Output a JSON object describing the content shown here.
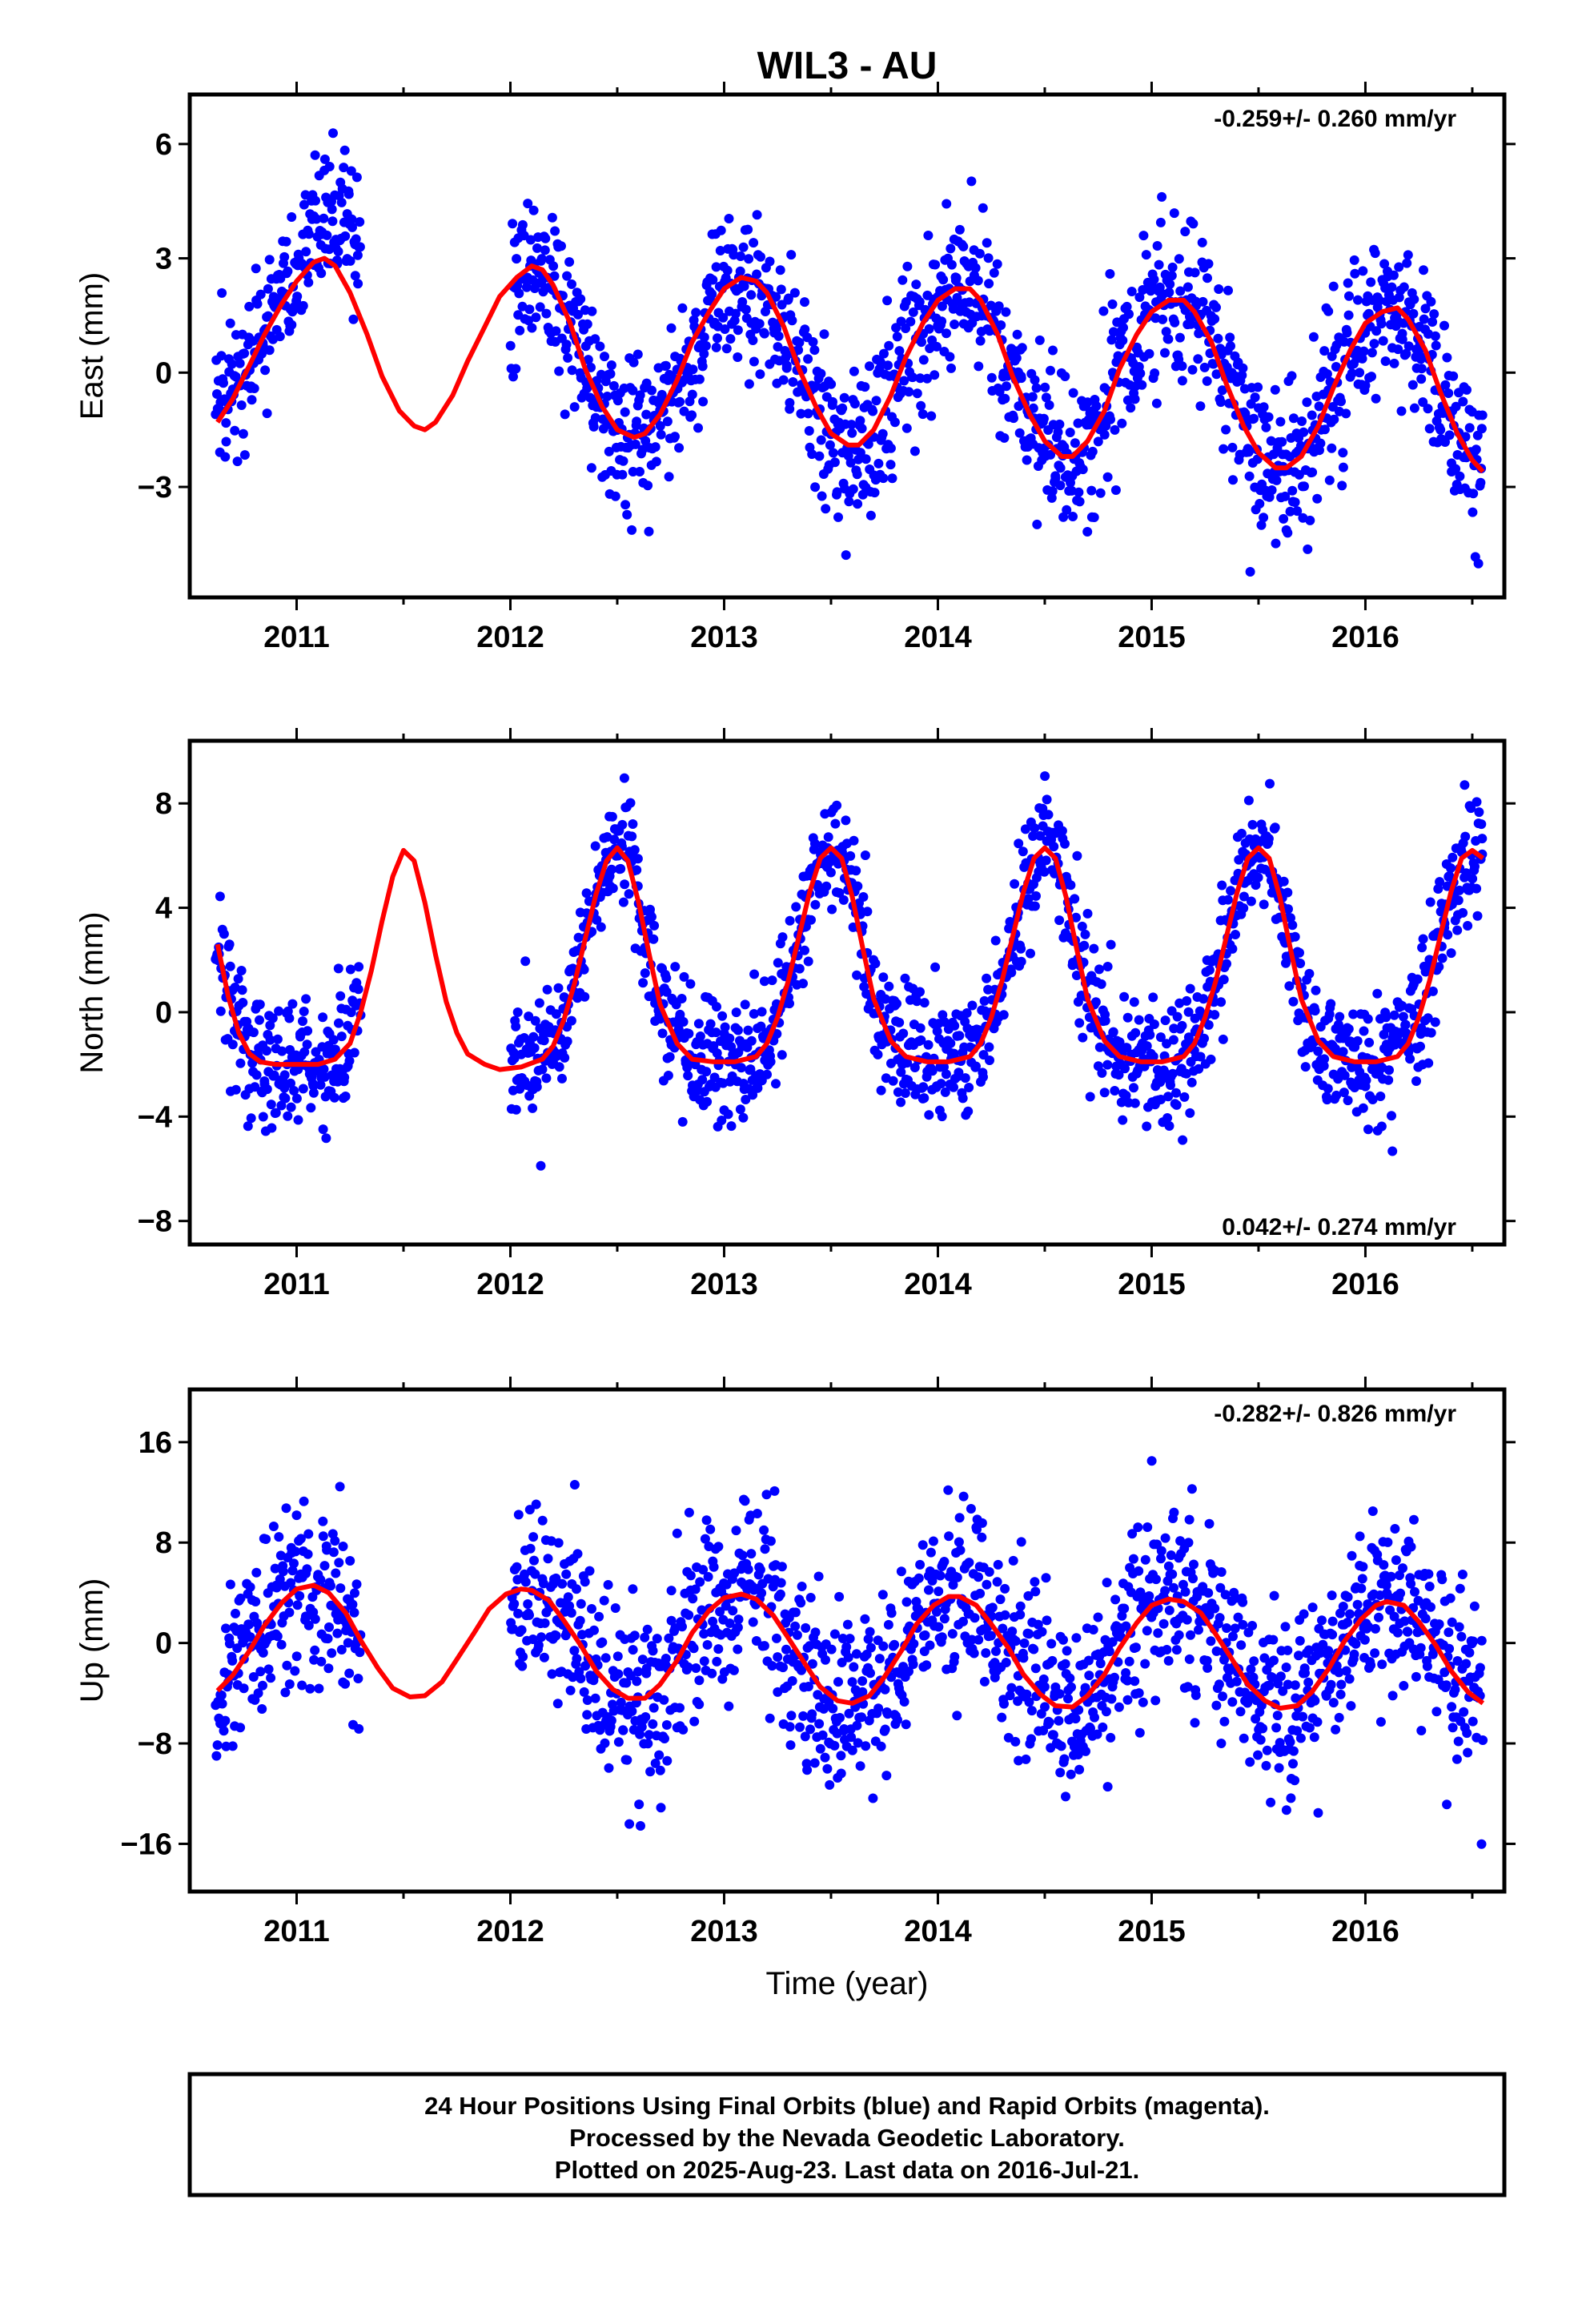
{
  "title": "WIL3 - AU",
  "xlabel": "Time (year)",
  "caption": [
    "24 Hour Positions Using Final Orbits (blue) and Rapid Orbits (magenta).",
    "Processed by the Nevada Geodetic Laboratory.",
    "Plotted on 2025-Aug-23. Last data on 2016-Jul-21."
  ],
  "colors": {
    "points": "#0000ff",
    "model": "#ff0000",
    "axes": "#000000"
  },
  "chart_data": [
    {
      "type": "scatter",
      "ylabel": "East (mm)",
      "rate_text": "-0.259+/- 0.260 mm/yr",
      "rate_position": "top-right",
      "xlim": [
        2010.5,
        2016.65
      ],
      "ylim": [
        -5.9,
        7.3
      ],
      "yticks": [
        -3,
        0,
        3,
        6
      ],
      "ytick_labels": [
        "−3",
        "0",
        "3",
        "6"
      ],
      "xticks": [
        2011,
        2012,
        2013,
        2014,
        2015,
        2016
      ],
      "xtick_labels": [
        "2011",
        "2012",
        "2013",
        "2014",
        "2015",
        "2016"
      ],
      "model": {
        "x": [
          2010.63,
          2010.7,
          2010.78,
          2010.85,
          2010.93,
          2011.0,
          2011.08,
          2011.13,
          2011.18,
          2011.25,
          2011.33,
          2011.4,
          2011.48,
          2011.55,
          2011.6,
          2011.65,
          2011.73,
          2011.8,
          2011.88,
          2011.95,
          2012.03,
          2012.1,
          2012.15,
          2012.2,
          2012.28,
          2012.35,
          2012.43,
          2012.5,
          2012.58,
          2012.63,
          2012.7,
          2012.78,
          2012.85,
          2012.93,
          2013.0,
          2013.08,
          2013.15,
          2013.2,
          2013.28,
          2013.35,
          2013.43,
          2013.5,
          2013.58,
          2013.63,
          2013.7,
          2013.78,
          2013.85,
          2013.93,
          2014.0,
          2014.08,
          2014.15,
          2014.2,
          2014.28,
          2014.35,
          2014.43,
          2014.5,
          2014.58,
          2014.63,
          2014.7,
          2014.78,
          2014.85,
          2014.93,
          2015.0,
          2015.08,
          2015.15,
          2015.2,
          2015.28,
          2015.35,
          2015.43,
          2015.5,
          2015.58,
          2015.63,
          2015.7,
          2015.78,
          2015.85,
          2015.93,
          2016.0,
          2016.08,
          2016.15,
          2016.2,
          2016.28,
          2016.35,
          2016.43,
          2016.5,
          2016.55
        ],
        "y": [
          -1.3,
          -0.7,
          0.2,
          1.0,
          1.8,
          2.4,
          2.9,
          3.0,
          2.8,
          2.1,
          1.0,
          -0.1,
          -1.0,
          -1.4,
          -1.5,
          -1.3,
          -0.6,
          0.3,
          1.2,
          2.0,
          2.5,
          2.8,
          2.7,
          2.3,
          1.3,
          0.1,
          -0.9,
          -1.5,
          -1.7,
          -1.6,
          -1.1,
          -0.2,
          0.8,
          1.6,
          2.2,
          2.5,
          2.4,
          2.1,
          1.2,
          0.1,
          -0.9,
          -1.6,
          -1.9,
          -1.9,
          -1.5,
          -0.6,
          0.4,
          1.3,
          1.9,
          2.2,
          2.2,
          1.9,
          1.0,
          -0.1,
          -1.1,
          -1.8,
          -2.2,
          -2.2,
          -1.8,
          -1.0,
          0.1,
          1.0,
          1.6,
          1.9,
          1.9,
          1.6,
          0.8,
          -0.3,
          -1.4,
          -2.1,
          -2.5,
          -2.5,
          -2.2,
          -1.4,
          -0.4,
          0.6,
          1.3,
          1.6,
          1.7,
          1.4,
          0.6,
          -0.5,
          -1.6,
          -2.3,
          -2.6
        ]
      },
      "points": {
        "segments": [
          [
            2010.62,
            2011.3
          ],
          [
            2012.0,
            2016.55
          ]
        ],
        "model_offset": [
          {
            "x0": 2011.0,
            "x1": 2011.3,
            "dy": 1.8
          }
        ],
        "scatter_sd": 1.05,
        "density_per_year": 300
      }
    },
    {
      "type": "scatter",
      "ylabel": "North (mm)",
      "rate_text": "0.042+/- 0.274 mm/yr",
      "rate_position": "bottom-right",
      "xlim": [
        2010.5,
        2016.65
      ],
      "ylim": [
        -8.9,
        10.4
      ],
      "yticks": [
        -8,
        -4,
        0,
        4,
        8
      ],
      "ytick_labels": [
        "−8",
        "−4",
        "0",
        "4",
        "8"
      ],
      "xticks": [
        2011,
        2012,
        2013,
        2014,
        2015,
        2016
      ],
      "xtick_labels": [
        "2011",
        "2012",
        "2013",
        "2014",
        "2015",
        "2016"
      ],
      "model": {
        "x": [
          2010.63,
          2010.68,
          2010.73,
          2010.78,
          2010.83,
          2010.9,
          2011.0,
          2011.1,
          2011.18,
          2011.25,
          2011.3,
          2011.35,
          2011.4,
          2011.45,
          2011.5,
          2011.55,
          2011.6,
          2011.65,
          2011.7,
          2011.75,
          2011.8,
          2011.88,
          2011.95,
          2012.05,
          2012.15,
          2012.2,
          2012.25,
          2012.3,
          2012.35,
          2012.4,
          2012.45,
          2012.5,
          2012.55,
          2012.6,
          2012.65,
          2012.7,
          2012.78,
          2012.85,
          2012.95,
          2013.05,
          2013.15,
          2013.2,
          2013.25,
          2013.3,
          2013.35,
          2013.4,
          2013.45,
          2013.5,
          2013.55,
          2013.6,
          2013.65,
          2013.7,
          2013.78,
          2013.85,
          2013.95,
          2014.05,
          2014.15,
          2014.2,
          2014.25,
          2014.3,
          2014.35,
          2014.4,
          2014.45,
          2014.5,
          2014.55,
          2014.6,
          2014.65,
          2014.7,
          2014.78,
          2014.85,
          2014.95,
          2015.05,
          2015.15,
          2015.2,
          2015.25,
          2015.3,
          2015.35,
          2015.4,
          2015.45,
          2015.5,
          2015.55,
          2015.6,
          2015.65,
          2015.7,
          2015.78,
          2015.85,
          2015.95,
          2016.05,
          2016.15,
          2016.2,
          2016.25,
          2016.3,
          2016.35,
          2016.4,
          2016.45,
          2016.5,
          2016.55
        ],
        "y": [
          2.6,
          0.6,
          -0.8,
          -1.6,
          -1.9,
          -2.0,
          -2.0,
          -2.0,
          -1.8,
          -1.2,
          0.0,
          1.6,
          3.5,
          5.2,
          6.2,
          5.8,
          4.2,
          2.2,
          0.4,
          -0.8,
          -1.6,
          -2.0,
          -2.2,
          -2.1,
          -1.8,
          -1.3,
          -0.3,
          1.1,
          2.8,
          4.5,
          5.8,
          6.3,
          5.8,
          4.2,
          2.2,
          0.3,
          -1.2,
          -1.8,
          -1.9,
          -1.9,
          -1.7,
          -1.2,
          -0.2,
          1.2,
          2.9,
          4.6,
          5.9,
          6.3,
          5.9,
          4.4,
          2.4,
          0.5,
          -1.1,
          -1.7,
          -1.9,
          -1.9,
          -1.7,
          -1.2,
          -0.2,
          1.2,
          2.9,
          4.6,
          5.9,
          6.3,
          5.9,
          4.4,
          2.4,
          0.5,
          -1.1,
          -1.7,
          -1.9,
          -1.9,
          -1.7,
          -1.2,
          -0.2,
          1.2,
          2.9,
          4.6,
          5.9,
          6.3,
          5.9,
          4.4,
          2.4,
          0.5,
          -1.1,
          -1.7,
          -1.9,
          -1.9,
          -1.7,
          -1.2,
          -0.2,
          1.2,
          2.9,
          4.6,
          5.9,
          6.2,
          5.9
        ]
      },
      "points": {
        "segments": [
          [
            2010.62,
            2011.3
          ],
          [
            2012.0,
            2016.55
          ]
        ],
        "model_offset": [],
        "scatter_sd": 1.2,
        "density_per_year": 300
      }
    },
    {
      "type": "scatter",
      "ylabel": "Up (mm)",
      "rate_text": "-0.282+/- 0.826 mm/yr",
      "rate_position": "top-right",
      "xlim": [
        2010.5,
        2016.65
      ],
      "ylim": [
        -19.8,
        20.2
      ],
      "yticks": [
        -16,
        -8,
        0,
        8,
        16
      ],
      "ytick_labels": [
        "−16",
        "−8",
        "0",
        "8",
        "16"
      ],
      "xticks": [
        2011,
        2012,
        2013,
        2014,
        2015,
        2016
      ],
      "xtick_labels": [
        "2011",
        "2012",
        "2013",
        "2014",
        "2015",
        "2016"
      ],
      "model": {
        "x": [
          2010.63,
          2010.7,
          2010.78,
          2010.85,
          2010.93,
          2011.0,
          2011.08,
          2011.15,
          2011.23,
          2011.3,
          2011.38,
          2011.45,
          2011.53,
          2011.6,
          2011.68,
          2011.75,
          2011.83,
          2011.9,
          2011.98,
          2012.05,
          2012.1,
          2012.18,
          2012.25,
          2012.33,
          2012.4,
          2012.48,
          2012.55,
          2012.63,
          2012.7,
          2012.78,
          2012.85,
          2012.93,
          2013.0,
          2013.08,
          2013.15,
          2013.23,
          2013.3,
          2013.38,
          2013.45,
          2013.53,
          2013.6,
          2013.68,
          2013.75,
          2013.83,
          2013.9,
          2013.98,
          2014.05,
          2014.1,
          2014.18,
          2014.25,
          2014.33,
          2014.4,
          2014.48,
          2014.55,
          2014.63,
          2014.7,
          2014.78,
          2014.85,
          2014.93,
          2015.0,
          2015.08,
          2015.15,
          2015.23,
          2015.3,
          2015.38,
          2015.45,
          2015.53,
          2015.6,
          2015.68,
          2015.75,
          2015.83,
          2015.9,
          2015.98,
          2016.05,
          2016.1,
          2016.18,
          2016.25,
          2016.33,
          2016.4,
          2016.48,
          2016.55
        ],
        "y": [
          -3.8,
          -2.6,
          -0.6,
          1.4,
          3.2,
          4.3,
          4.6,
          4.0,
          2.4,
          0.2,
          -2.0,
          -3.6,
          -4.3,
          -4.2,
          -3.1,
          -1.3,
          0.8,
          2.7,
          3.9,
          4.3,
          4.2,
          3.4,
          1.8,
          -0.2,
          -2.2,
          -3.7,
          -4.4,
          -4.4,
          -3.3,
          -1.4,
          0.8,
          2.6,
          3.6,
          3.9,
          3.5,
          2.2,
          0.4,
          -1.7,
          -3.5,
          -4.6,
          -4.8,
          -4.2,
          -2.7,
          -0.6,
          1.5,
          3.0,
          3.7,
          3.7,
          3.0,
          1.5,
          -0.4,
          -2.5,
          -4.1,
          -5.0,
          -5.1,
          -4.2,
          -2.5,
          -0.4,
          1.6,
          3.0,
          3.5,
          3.3,
          2.4,
          0.7,
          -1.4,
          -3.3,
          -4.6,
          -5.2,
          -5.0,
          -3.9,
          -2.0,
          0.1,
          1.9,
          3.0,
          3.3,
          3.0,
          1.7,
          -0.2,
          -2.2,
          -3.9,
          -4.8
        ]
      },
      "points": {
        "segments": [
          [
            2010.62,
            2011.3
          ],
          [
            2012.0,
            2016.55
          ]
        ],
        "model_offset": [],
        "scatter_sd": 3.6,
        "density_per_year": 300
      }
    }
  ]
}
